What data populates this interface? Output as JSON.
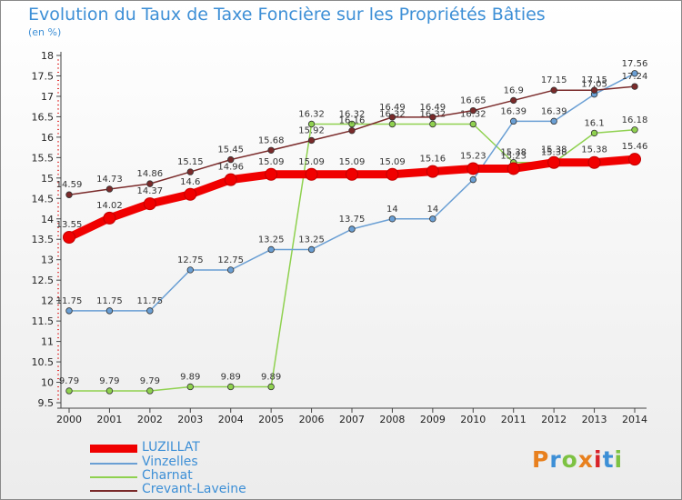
{
  "header": {
    "title": "Evolution du Taux de Taxe Foncière sur les Propriétés Bâties",
    "unit": "(en %)"
  },
  "logo": {
    "letters": [
      "P",
      "r",
      "o",
      "x",
      "i",
      "t",
      "i"
    ],
    "colors": [
      "#e8801e",
      "#3d8fd6",
      "#7dc242",
      "#e8801e",
      "#d8232a",
      "#3d8fd6",
      "#7dc242"
    ]
  },
  "chart_data": {
    "type": "line",
    "title": "Evolution du Taux de Taxe Foncière sur les Propriétés Bâties",
    "ylabel": "(en %)",
    "xlabel": "",
    "x": [
      "2000",
      "2001",
      "2002",
      "2003",
      "2004",
      "2005",
      "2006",
      "2007",
      "2008",
      "2009",
      "2010",
      "2011",
      "2012",
      "2013",
      "2014"
    ],
    "ylim": [
      9.5,
      18
    ],
    "yticks": [
      "9.5",
      "10",
      "10.5",
      "11",
      "11.5",
      "12",
      "12.5",
      "13",
      "13.5",
      "14",
      "14.5",
      "15",
      "15.5",
      "16",
      "16.5",
      "17",
      "17.5",
      "18"
    ],
    "grid": false,
    "legend": "bottom-left",
    "series": [
      {
        "name": "LUZILLAT",
        "color": "#f00000",
        "values": [
          13.55,
          14.02,
          14.37,
          14.6,
          14.96,
          15.09,
          15.09,
          15.09,
          15.09,
          15.16,
          15.23,
          15.23,
          15.38,
          15.38,
          15.46
        ],
        "labels": [
          "13.55",
          "14.02",
          "14.37",
          "14.6",
          "14.96",
          "15.09",
          "15.09",
          "15.09",
          "15.09",
          "15.16",
          "15.23",
          "15.23",
          "15.38",
          "15.38",
          "15.46"
        ]
      },
      {
        "name": "Vinzelles",
        "color": "#6a9fd4",
        "values": [
          11.75,
          11.75,
          11.75,
          12.75,
          12.75,
          13.25,
          13.25,
          13.75,
          14,
          14,
          14.96,
          16.39,
          16.39,
          17.05,
          17.56
        ],
        "labels": [
          "11.75",
          "11.75",
          "11.75",
          "12.75",
          "12.75",
          "13.25",
          "13.25",
          "13.75",
          "14",
          "14",
          "14.96",
          "16.39",
          "16.39",
          "17.05",
          "17.56"
        ]
      },
      {
        "name": "Charnat",
        "color": "#8fd14f",
        "values": [
          9.79,
          9.79,
          9.79,
          9.89,
          9.89,
          9.89,
          16.32,
          16.32,
          16.32,
          16.32,
          16.32,
          15.38,
          15.38,
          16.1,
          16.18
        ],
        "labels": [
          "9.79",
          "9.79",
          "9.79",
          "9.89",
          "9.89",
          "9.89",
          "16.32",
          "16.32",
          "16.32",
          "16.32",
          "16.32",
          "15.38",
          "15.38",
          "16.1",
          "16.18"
        ]
      },
      {
        "name": "Crevant-Laveine",
        "color": "#7a2a2a",
        "values": [
          14.59,
          14.73,
          14.86,
          15.15,
          15.45,
          15.68,
          15.92,
          16.16,
          16.49,
          16.49,
          16.65,
          16.9,
          17.15,
          17.15,
          17.24
        ],
        "labels": [
          "14.59",
          "14.73",
          "14.86",
          "15.15",
          "15.45",
          "15.68",
          "15.92",
          "16.16",
          "16.49",
          "16.49",
          "16.65",
          "16.9",
          "17.15",
          "17.15",
          "17.24"
        ]
      }
    ]
  }
}
